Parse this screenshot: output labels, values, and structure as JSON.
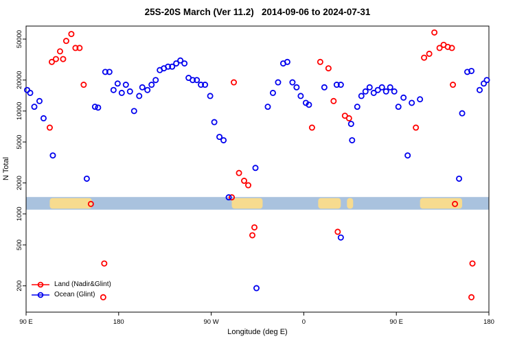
{
  "chart_data": {
    "type": "scatter",
    "title": "25S-20S March (Ver 11.2)   2014-09-06 to 2024-07-31",
    "xlabel": "Longitude (deg E)",
    "ylabel": "N Total",
    "x_axis": {
      "note": "longitude wrapped: starts at 90E, goes eastward through 180, 90W, 0, 90E, ends at 180; positions below are degrees east of 90E",
      "range_deg": [
        0,
        450
      ],
      "ticks": [
        {
          "deg": 0,
          "label": "90 E"
        },
        {
          "deg": 90,
          "label": "180"
        },
        {
          "deg": 180,
          "label": "90 W"
        },
        {
          "deg": 270,
          "label": "0"
        },
        {
          "deg": 360,
          "label": "90 E"
        },
        {
          "deg": 450,
          "label": "180"
        }
      ]
    },
    "y_axis": {
      "scale": "log",
      "range": [
        110,
        67000
      ],
      "ticks": [
        {
          "value": 200,
          "label": "200"
        },
        {
          "value": 500,
          "label": "500"
        },
        {
          "value": 1000,
          "label": "1000"
        },
        {
          "value": 2000,
          "label": "2000"
        },
        {
          "value": 5000,
          "label": "5000"
        },
        {
          "value": 10000,
          "label": "10000"
        },
        {
          "value": 20000,
          "label": "20000"
        },
        {
          "value": 50000,
          "label": "50000"
        }
      ]
    },
    "map_strip": {
      "description": "land/ocean map band for latitude 25S-20S drawn across the plot",
      "ocean_color": "#A9C2DE",
      "land_color": "#F7DB8F",
      "n_range": [
        1100,
        1460
      ],
      "land_segments_deg": [
        [
          23,
          64
        ],
        [
          200,
          230
        ],
        [
          284,
          306
        ],
        [
          312,
          318
        ],
        [
          383,
          424
        ]
      ]
    },
    "series": [
      {
        "name": "Land (Nadir&Glint)",
        "color": "#FF0000",
        "marker": "open-circle",
        "points": [
          [
            23,
            6900
          ],
          [
            25,
            30000
          ],
          [
            29,
            32000
          ],
          [
            33,
            38000
          ],
          [
            36,
            32000
          ],
          [
            39,
            48000
          ],
          [
            44,
            56000
          ],
          [
            48,
            41000
          ],
          [
            52,
            41000
          ],
          [
            56,
            18000
          ],
          [
            63,
            1250
          ],
          [
            75,
            155
          ],
          [
            76,
            330
          ],
          [
            200,
            1450
          ],
          [
            202,
            19000
          ],
          [
            207,
            2500
          ],
          [
            212,
            2100
          ],
          [
            216,
            1900
          ],
          [
            220,
            620
          ],
          [
            222,
            740
          ],
          [
            278,
            6900
          ],
          [
            286,
            30000
          ],
          [
            294,
            26000
          ],
          [
            299,
            12500
          ],
          [
            303,
            670
          ],
          [
            310,
            9000
          ],
          [
            314,
            8500
          ],
          [
            379,
            6900
          ],
          [
            387,
            33000
          ],
          [
            392,
            36000
          ],
          [
            397,
            58000
          ],
          [
            402,
            41000
          ],
          [
            406,
            44000
          ],
          [
            410,
            42000
          ],
          [
            414,
            41000
          ],
          [
            415,
            18000
          ],
          [
            417,
            1250
          ],
          [
            433,
            155
          ],
          [
            434,
            330
          ]
        ]
      },
      {
        "name": "Ocean (Glint)",
        "color": "#0000EE",
        "marker": "open-circle",
        "points": [
          [
            1,
            16000
          ],
          [
            4,
            15000
          ],
          [
            8,
            11000
          ],
          [
            13,
            12500
          ],
          [
            17,
            8500
          ],
          [
            26,
            3700
          ],
          [
            59,
            2200
          ],
          [
            67,
            11000
          ],
          [
            70,
            10800
          ],
          [
            77,
            24000
          ],
          [
            81,
            24000
          ],
          [
            85,
            16000
          ],
          [
            89,
            18500
          ],
          [
            93,
            15000
          ],
          [
            97,
            18000
          ],
          [
            101,
            15500
          ],
          [
            105,
            10000
          ],
          [
            110,
            14000
          ],
          [
            113,
            17000
          ],
          [
            118,
            16000
          ],
          [
            122,
            18000
          ],
          [
            126,
            20000
          ],
          [
            130,
            25000
          ],
          [
            134,
            26000
          ],
          [
            138,
            27000
          ],
          [
            142,
            27000
          ],
          [
            146,
            29000
          ],
          [
            150,
            31000
          ],
          [
            154,
            29000
          ],
          [
            158,
            21000
          ],
          [
            162,
            20000
          ],
          [
            166,
            20000
          ],
          [
            170,
            18000
          ],
          [
            174,
            18000
          ],
          [
            179,
            14000
          ],
          [
            183,
            7800
          ],
          [
            188,
            5600
          ],
          [
            192,
            5200
          ],
          [
            197,
            1450
          ],
          [
            223,
            2800
          ],
          [
            224,
            190
          ],
          [
            235,
            11000
          ],
          [
            240,
            15000
          ],
          [
            245,
            19000
          ],
          [
            250,
            29000
          ],
          [
            254,
            30000
          ],
          [
            259,
            19000
          ],
          [
            263,
            17000
          ],
          [
            267,
            14000
          ],
          [
            272,
            12000
          ],
          [
            275,
            11500
          ],
          [
            290,
            17000
          ],
          [
            302,
            18000
          ],
          [
            306,
            18000
          ],
          [
            306,
            590
          ],
          [
            316,
            7500
          ],
          [
            317,
            5200
          ],
          [
            322,
            11000
          ],
          [
            326,
            14000
          ],
          [
            330,
            15500
          ],
          [
            334,
            17000
          ],
          [
            338,
            15000
          ],
          [
            342,
            16000
          ],
          [
            346,
            17000
          ],
          [
            350,
            15500
          ],
          [
            354,
            17000
          ],
          [
            358,
            15500
          ],
          [
            362,
            11000
          ],
          [
            367,
            13500
          ],
          [
            371,
            3700
          ],
          [
            375,
            12000
          ],
          [
            383,
            13000
          ],
          [
            421,
            2200
          ],
          [
            424,
            9500
          ],
          [
            429,
            24000
          ],
          [
            433,
            24500
          ],
          [
            441,
            16000
          ],
          [
            445,
            18500
          ],
          [
            448,
            20000
          ]
        ]
      }
    ],
    "legend_position": "bottom-left"
  }
}
